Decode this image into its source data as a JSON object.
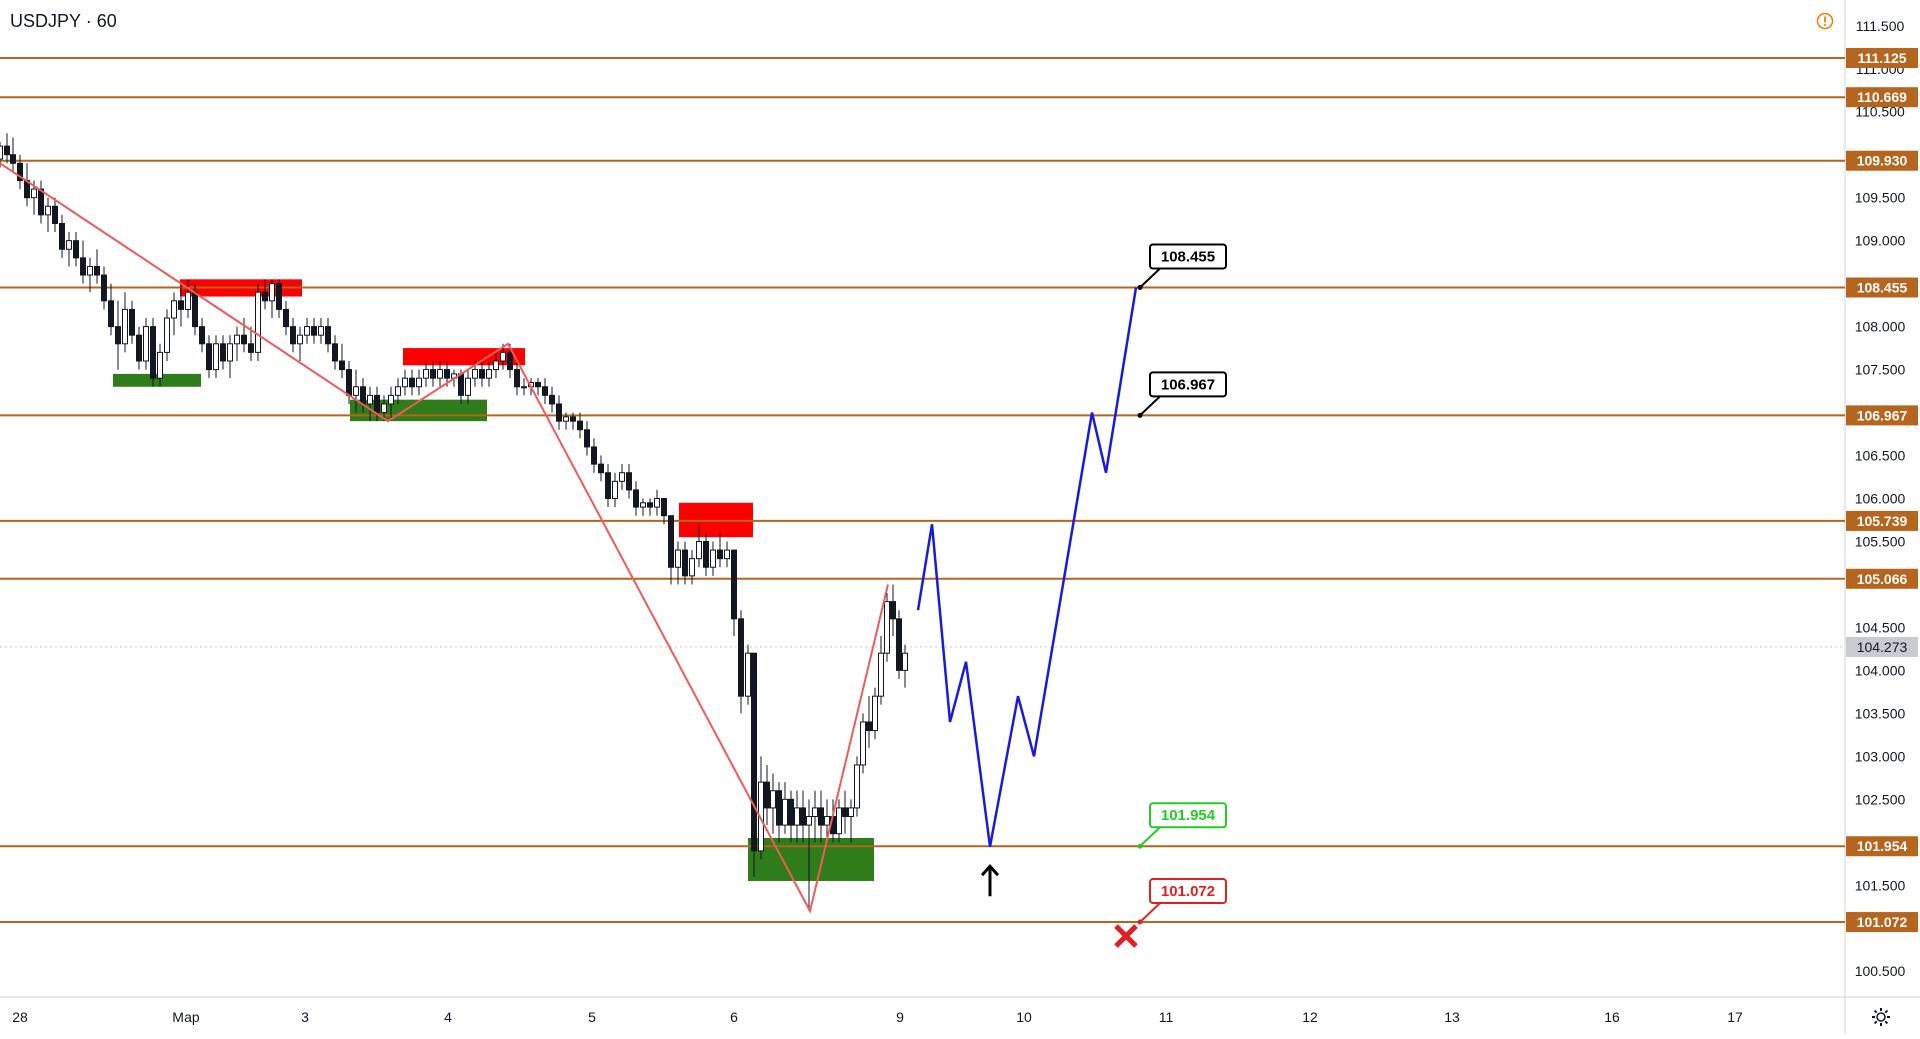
{
  "header": {
    "symbol": "USDJPY",
    "interval": "60"
  },
  "colors": {
    "level_line": "#b5651d",
    "level_tag_bg": "#b5651d",
    "candle": "#131722",
    "zigzag": "#f05a5a",
    "forecast": "#1a1adf",
    "supply_zone": "#ff0000",
    "demand_zone": "#2e7d1a",
    "grid_dots": "#c8c8c8",
    "warn": "#f57c00",
    "target_green": "#22cc22",
    "stop_red": "#e02020"
  },
  "chart_data": {
    "type": "candlestick",
    "symbol": "USDJPY",
    "interval": "60",
    "ylim": [
      100.2,
      111.8
    ],
    "y_ticks": [
      "111.500",
      "111.000",
      "110.500",
      "109.500",
      "109.000",
      "108.000",
      "107.500",
      "106.500",
      "106.000",
      "105.500",
      "104.500",
      "104.000",
      "103.500",
      "103.000",
      "102.500",
      "101.500",
      "100.500"
    ],
    "x_ticks": [
      "28",
      "Мар",
      "3",
      "4",
      "5",
      "6",
      "9",
      "10",
      "11",
      "12",
      "13",
      "16",
      "17"
    ],
    "current_price": "104.273",
    "price_tags": [
      "111.125",
      "110.669",
      "109.930",
      "108.455",
      "106.967",
      "105.739",
      "105.066",
      "101.954",
      "101.072"
    ],
    "levels": [
      111.125,
      110.669,
      109.93,
      108.455,
      106.967,
      105.739,
      105.066,
      101.954,
      101.072
    ],
    "zigzag": [
      [
        0,
        109.9
      ],
      [
        388,
        106.9
      ],
      [
        508,
        107.8
      ],
      [
        810,
        101.2
      ],
      [
        888,
        105.0
      ]
    ],
    "forecast_path": [
      [
        918,
        104.7
      ],
      [
        932,
        105.7
      ],
      [
        950,
        103.4
      ],
      [
        966,
        104.1
      ],
      [
        990,
        101.95
      ],
      [
        1018,
        103.7
      ],
      [
        1034,
        103.0
      ],
      [
        1092,
        107.0
      ],
      [
        1106,
        106.3
      ],
      [
        1136,
        108.455
      ]
    ],
    "supply_zones": [
      [
        180,
        302,
        108.55,
        108.35
      ],
      [
        403,
        525,
        107.75,
        107.55
      ],
      [
        679,
        753,
        105.95,
        105.55
      ]
    ],
    "demand_zones": [
      [
        113,
        201,
        107.45,
        107.3
      ],
      [
        350,
        487,
        107.15,
        106.9
      ],
      [
        748,
        874,
        102.05,
        101.55
      ]
    ],
    "callouts": [
      {
        "label": "108.455",
        "kind": "target"
      },
      {
        "label": "106.967",
        "kind": "target"
      },
      {
        "label": "101.954",
        "kind": "entry"
      },
      {
        "label": "101.072",
        "kind": "stop"
      }
    ],
    "ohlc": [
      [
        0,
        109.95,
        110.15,
        109.85,
        110.1
      ],
      [
        7,
        110.1,
        110.25,
        109.9,
        110.0
      ],
      [
        13,
        110.0,
        110.2,
        109.8,
        109.9
      ],
      [
        20,
        109.9,
        110.0,
        109.6,
        109.7
      ],
      [
        27,
        109.7,
        109.9,
        109.4,
        109.5
      ],
      [
        34,
        109.5,
        109.7,
        109.3,
        109.6
      ],
      [
        41,
        109.6,
        109.7,
        109.2,
        109.3
      ],
      [
        48,
        109.3,
        109.5,
        109.1,
        109.4
      ],
      [
        55,
        109.4,
        109.5,
        109.1,
        109.2
      ],
      [
        62,
        109.2,
        109.3,
        108.8,
        108.9
      ],
      [
        69,
        108.9,
        109.1,
        108.7,
        109.0
      ],
      [
        76,
        109.0,
        109.1,
        108.7,
        108.8
      ],
      [
        83,
        108.8,
        109.0,
        108.5,
        108.6
      ],
      [
        90,
        108.6,
        108.8,
        108.4,
        108.7
      ],
      [
        97,
        108.7,
        108.9,
        108.5,
        108.6
      ],
      [
        104,
        108.6,
        108.7,
        108.2,
        108.3
      ],
      [
        111,
        108.3,
        108.5,
        107.9,
        108.0
      ],
      [
        118,
        108.0,
        108.3,
        107.5,
        107.8
      ],
      [
        125,
        107.8,
        108.4,
        107.7,
        108.2
      ],
      [
        132,
        108.2,
        108.3,
        107.8,
        107.9
      ],
      [
        139,
        107.9,
        108.0,
        107.5,
        107.6
      ],
      [
        146,
        107.6,
        108.1,
        107.5,
        108.0
      ],
      [
        153,
        108.0,
        108.1,
        107.3,
        107.4
      ],
      [
        160,
        107.4,
        107.8,
        107.3,
        107.7
      ],
      [
        167,
        107.7,
        108.2,
        107.6,
        108.1
      ],
      [
        174,
        108.1,
        108.4,
        107.9,
        108.3
      ],
      [
        181,
        108.3,
        108.5,
        108.0,
        108.2
      ],
      [
        188,
        108.2,
        108.55,
        108.1,
        108.4
      ],
      [
        195,
        108.4,
        108.5,
        107.9,
        108.0
      ],
      [
        202,
        108.0,
        108.1,
        107.7,
        107.8
      ],
      [
        209,
        107.8,
        107.9,
        107.4,
        107.5
      ],
      [
        216,
        107.5,
        107.9,
        107.4,
        107.8
      ],
      [
        223,
        107.8,
        107.9,
        107.5,
        107.6
      ],
      [
        230,
        107.6,
        107.9,
        107.4,
        107.8
      ],
      [
        237,
        107.8,
        108.0,
        107.6,
        107.9
      ],
      [
        244,
        107.9,
        108.1,
        107.7,
        107.8
      ],
      [
        251,
        107.8,
        108.0,
        107.6,
        107.7
      ],
      [
        258,
        107.7,
        108.5,
        107.6,
        108.4
      ],
      [
        265,
        108.4,
        108.55,
        108.2,
        108.3
      ],
      [
        272,
        108.3,
        108.55,
        108.1,
        108.5
      ],
      [
        279,
        108.5,
        108.55,
        108.1,
        108.2
      ],
      [
        286,
        108.2,
        108.3,
        107.9,
        108.0
      ],
      [
        293,
        108.0,
        108.1,
        107.7,
        107.8
      ],
      [
        300,
        107.8,
        108.0,
        107.6,
        107.9
      ],
      [
        307,
        107.9,
        108.1,
        107.8,
        108.0
      ],
      [
        314,
        108.0,
        108.1,
        107.8,
        107.9
      ],
      [
        321,
        107.9,
        108.1,
        107.8,
        108.0
      ],
      [
        328,
        108.0,
        108.1,
        107.7,
        107.8
      ],
      [
        335,
        107.8,
        107.9,
        107.5,
        107.6
      ],
      [
        342,
        107.6,
        107.8,
        107.4,
        107.5
      ],
      [
        349,
        107.5,
        107.6,
        107.1,
        107.2
      ],
      [
        356,
        107.2,
        107.5,
        107.0,
        107.3
      ],
      [
        363,
        107.3,
        107.4,
        107.0,
        107.1
      ],
      [
        370,
        107.1,
        107.3,
        106.9,
        107.2
      ],
      [
        377,
        107.2,
        107.3,
        106.9,
        107.0
      ],
      [
        384,
        107.0,
        107.2,
        106.9,
        107.1
      ],
      [
        391,
        107.1,
        107.3,
        106.9,
        107.2
      ],
      [
        398,
        107.2,
        107.4,
        107.1,
        107.3
      ],
      [
        405,
        107.3,
        107.5,
        107.2,
        107.4
      ],
      [
        412,
        107.4,
        107.5,
        107.2,
        107.3
      ],
      [
        419,
        107.3,
        107.5,
        107.2,
        107.4
      ],
      [
        426,
        107.4,
        107.6,
        107.3,
        107.5
      ],
      [
        433,
        107.5,
        107.6,
        107.3,
        107.4
      ],
      [
        440,
        107.4,
        107.6,
        107.3,
        107.5
      ],
      [
        447,
        107.5,
        107.6,
        107.3,
        107.4
      ],
      [
        454,
        107.4,
        107.5,
        107.3,
        107.45
      ],
      [
        461,
        107.45,
        107.5,
        107.1,
        107.2
      ],
      [
        468,
        107.2,
        107.5,
        107.1,
        107.4
      ],
      [
        475,
        107.4,
        107.6,
        107.3,
        107.5
      ],
      [
        482,
        107.5,
        107.6,
        107.3,
        107.4
      ],
      [
        489,
        107.4,
        107.6,
        107.3,
        107.5
      ],
      [
        496,
        107.5,
        107.7,
        107.4,
        107.6
      ],
      [
        503,
        107.6,
        107.8,
        107.5,
        107.7
      ],
      [
        510,
        107.7,
        107.8,
        107.4,
        107.5
      ],
      [
        517,
        107.5,
        107.6,
        107.2,
        107.3
      ],
      [
        524,
        107.3,
        107.4,
        107.2,
        107.3
      ],
      [
        531,
        107.3,
        107.4,
        107.2,
        107.35
      ],
      [
        538,
        107.35,
        107.4,
        107.2,
        107.3
      ],
      [
        545,
        107.3,
        107.4,
        107.1,
        107.2
      ],
      [
        552,
        107.2,
        107.3,
        107.0,
        107.1
      ],
      [
        559,
        107.1,
        107.2,
        106.8,
        106.9
      ],
      [
        566,
        106.9,
        107.0,
        106.8,
        106.95
      ],
      [
        573,
        106.95,
        107.0,
        106.8,
        106.9
      ],
      [
        580,
        106.9,
        107.0,
        106.7,
        106.8
      ],
      [
        587,
        106.8,
        106.9,
        106.5,
        106.6
      ],
      [
        594,
        106.6,
        106.7,
        106.3,
        106.4
      ],
      [
        601,
        106.4,
        106.5,
        106.2,
        106.3
      ],
      [
        608,
        106.3,
        106.4,
        105.9,
        106.0
      ],
      [
        615,
        106.0,
        106.3,
        105.9,
        106.2
      ],
      [
        622,
        106.2,
        106.4,
        106.1,
        106.3
      ],
      [
        629,
        106.3,
        106.4,
        106.0,
        106.1
      ],
      [
        636,
        106.1,
        106.2,
        105.8,
        105.9
      ],
      [
        643,
        105.9,
        106.0,
        105.8,
        105.95
      ],
      [
        650,
        105.95,
        106.0,
        105.8,
        105.9
      ],
      [
        657,
        105.9,
        106.1,
        105.8,
        106.0
      ],
      [
        664,
        106.0,
        106.0,
        105.7,
        105.8
      ],
      [
        671,
        105.8,
        105.8,
        105.0,
        105.2
      ],
      [
        678,
        105.2,
        105.5,
        105.0,
        105.4
      ],
      [
        685,
        105.4,
        105.5,
        105.0,
        105.1
      ],
      [
        692,
        105.1,
        105.4,
        105.0,
        105.3
      ],
      [
        699,
        105.3,
        105.7,
        105.2,
        105.5
      ],
      [
        706,
        105.5,
        105.6,
        105.1,
        105.2
      ],
      [
        713,
        105.2,
        105.5,
        105.1,
        105.4
      ],
      [
        720,
        105.4,
        105.6,
        105.2,
        105.3
      ],
      [
        727,
        105.3,
        105.5,
        105.2,
        105.4
      ],
      [
        734,
        105.4,
        105.4,
        104.4,
        104.6
      ],
      [
        741,
        104.6,
        104.7,
        103.5,
        103.7
      ],
      [
        748,
        103.7,
        104.3,
        103.6,
        104.2
      ],
      [
        754,
        104.2,
        104.2,
        101.6,
        101.9
      ],
      [
        761,
        101.9,
        103.0,
        101.8,
        102.7
      ],
      [
        767,
        102.7,
        102.9,
        102.2,
        102.4
      ],
      [
        773,
        102.4,
        102.8,
        102.1,
        102.6
      ],
      [
        779,
        102.6,
        102.7,
        102.0,
        102.2
      ],
      [
        785,
        102.2,
        102.7,
        102.1,
        102.5
      ],
      [
        791,
        102.5,
        102.6,
        102.0,
        102.2
      ],
      [
        797,
        102.2,
        102.6,
        102.0,
        102.4
      ],
      [
        803,
        102.4,
        102.6,
        102.0,
        102.2
      ],
      [
        809,
        102.2,
        102.5,
        101.2,
        102.3
      ],
      [
        815,
        102.3,
        102.6,
        102.0,
        102.4
      ],
      [
        821,
        102.4,
        102.6,
        102.0,
        102.2
      ],
      [
        827,
        102.2,
        102.5,
        102.0,
        102.3
      ],
      [
        833,
        102.3,
        102.5,
        102.0,
        102.1
      ],
      [
        839,
        102.1,
        102.5,
        102.0,
        102.4
      ],
      [
        845,
        102.4,
        102.6,
        102.1,
        102.3
      ],
      [
        851,
        102.3,
        102.5,
        102.0,
        102.4
      ],
      [
        857,
        102.4,
        103.0,
        102.3,
        102.9
      ],
      [
        863,
        102.9,
        103.5,
        102.8,
        103.4
      ],
      [
        869,
        103.4,
        103.7,
        103.1,
        103.3
      ],
      [
        875,
        103.3,
        103.8,
        103.2,
        103.7
      ],
      [
        881,
        103.7,
        104.4,
        103.6,
        104.2
      ],
      [
        887,
        104.2,
        104.9,
        104.1,
        104.8
      ],
      [
        893,
        104.8,
        105.0,
        104.4,
        104.6
      ],
      [
        899,
        104.6,
        104.7,
        103.9,
        104.0
      ],
      [
        905,
        104.0,
        104.3,
        103.8,
        104.2
      ]
    ]
  }
}
